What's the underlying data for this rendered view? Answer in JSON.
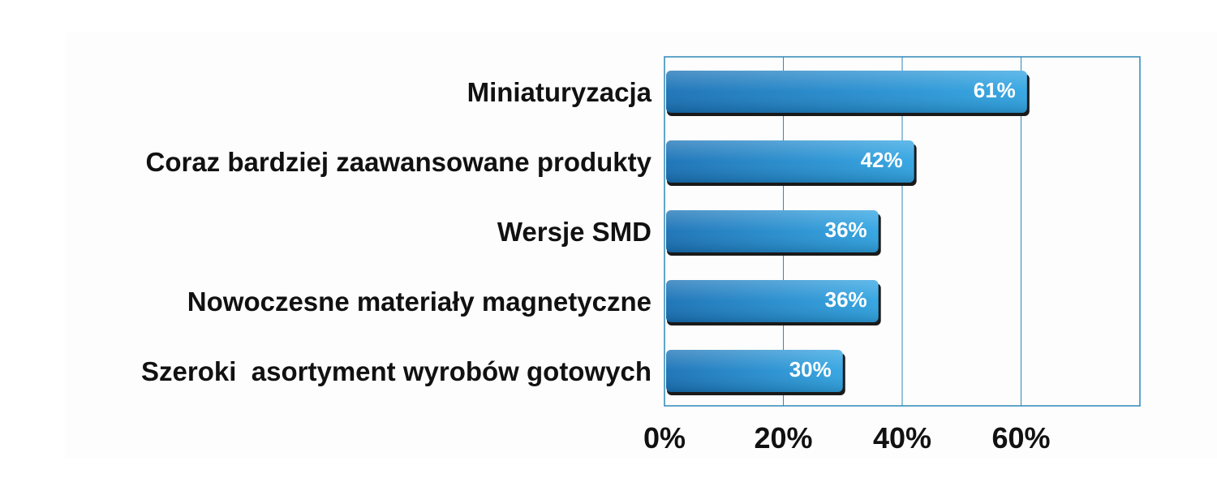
{
  "chart_data": {
    "type": "bar",
    "orientation": "horizontal",
    "categories": [
      "Miniaturyzacja",
      "Coraz bardziej zaawansowane produkty",
      "Wersje SMD",
      "Nowoczesne materiały magnetyczne",
      "Szeroki  asortyment wyrobów gotowych"
    ],
    "values": [
      61,
      42,
      36,
      36,
      30
    ],
    "data_labels": [
      "61%",
      "42%",
      "36%",
      "36%",
      "30%"
    ],
    "xlim": [
      0,
      80
    ],
    "xticks": [
      0,
      20,
      40,
      60
    ],
    "xtick_labels": [
      "0%",
      "20%",
      "40%",
      "60%"
    ],
    "grid": "vertical",
    "legend": "none",
    "bar_color": "#1f7fc4",
    "bar_highlight": "#34a9e6",
    "bar_shadow": "#1a1a1a",
    "frame_color": "#2f88b8"
  }
}
